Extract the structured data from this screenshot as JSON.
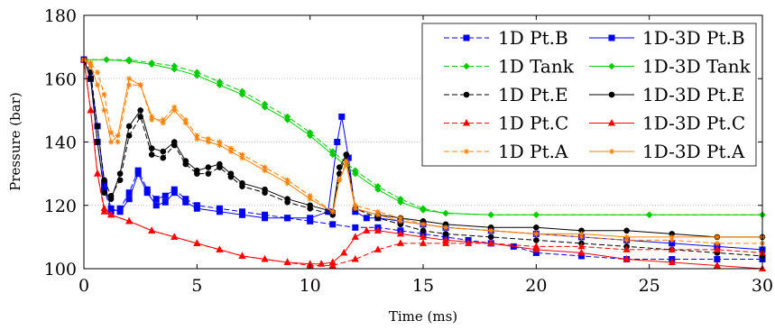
{
  "chart_data": {
    "type": "line",
    "title": "",
    "xlabel": "Time (ms)",
    "ylabel": "Pressure (bar)",
    "xlim": [
      0,
      30
    ],
    "ylim": [
      100,
      180
    ],
    "xticks": [
      0,
      5,
      10,
      15,
      20,
      25,
      30
    ],
    "yticks": [
      100,
      120,
      140,
      160,
      180
    ],
    "grid": "horizontal dotted",
    "legend_position": "top-right",
    "series": [
      {
        "name": "1D Pt.B",
        "color": "#0000ff",
        "dashed": true,
        "marker": "square",
        "x": [
          0,
          0.3,
          0.6,
          0.9,
          1.2,
          1.6,
          2,
          2.4,
          2.8,
          3.2,
          3.6,
          4,
          4.5,
          5,
          6,
          7,
          8,
          9,
          10,
          11,
          12,
          13,
          14,
          15,
          16,
          17,
          18,
          19,
          20,
          22,
          24,
          26,
          28,
          30
        ],
        "y": [
          166,
          160,
          140,
          125,
          118,
          119,
          124,
          131,
          125,
          122,
          123,
          125,
          122,
          120,
          119,
          118,
          117,
          116,
          115,
          114,
          113,
          113,
          112,
          111,
          110,
          109,
          108,
          107,
          105,
          104,
          103,
          103,
          103,
          103
        ]
      },
      {
        "name": "1D-3D Pt.B",
        "color": "#0000ff",
        "dashed": false,
        "marker": "square",
        "x": [
          0,
          0.3,
          0.6,
          0.9,
          1.2,
          1.6,
          2,
          2.4,
          2.8,
          3.2,
          3.6,
          4,
          4.5,
          5,
          6,
          7,
          8,
          9,
          10,
          10.8,
          11.2,
          11.4,
          11.7,
          12,
          12.5,
          13,
          14,
          15,
          16,
          18,
          20,
          22,
          24,
          26,
          28,
          30
        ],
        "y": [
          166,
          160,
          145,
          127,
          119,
          118,
          122,
          130,
          124,
          120,
          121,
          124,
          121,
          119,
          118,
          117,
          116,
          116,
          116,
          118,
          140,
          148,
          135,
          118,
          116,
          116,
          115,
          114,
          113,
          112,
          111,
          110,
          109,
          108,
          107,
          106
        ]
      },
      {
        "name": "1D Tank",
        "color": "#00cc00",
        "dashed": true,
        "marker": "diamond",
        "x": [
          0,
          1,
          2,
          3,
          4,
          5,
          6,
          7,
          8,
          9,
          10,
          11,
          12,
          13,
          14,
          15,
          16,
          18,
          20,
          25,
          30
        ],
        "y": [
          166,
          166,
          166,
          165,
          164,
          162,
          159,
          156,
          152,
          148,
          143,
          137,
          131,
          126,
          122,
          119,
          117.5,
          117,
          117,
          117,
          117
        ]
      },
      {
        "name": "1D-3D Tank",
        "color": "#00cc00",
        "dashed": false,
        "marker": "diamond",
        "x": [
          0,
          1,
          2,
          3,
          4,
          5,
          6,
          7,
          8,
          9,
          10,
          11,
          12,
          13,
          14,
          15,
          16,
          18,
          20,
          25,
          30
        ],
        "y": [
          166,
          166,
          165.5,
          164.5,
          163,
          161,
          158,
          155,
          151,
          147,
          142,
          136,
          130,
          125,
          121,
          118.5,
          117.5,
          117,
          117,
          117,
          117
        ]
      },
      {
        "name": "1D Pt.E",
        "color": "#000000",
        "dashed": true,
        "marker": "circle",
        "x": [
          0,
          0.3,
          0.6,
          0.9,
          1.2,
          1.6,
          2,
          2.5,
          3,
          3.5,
          4,
          4.5,
          5,
          5.5,
          6,
          6.5,
          7,
          8,
          9,
          10,
          11,
          11.3,
          11.6,
          12,
          13,
          14,
          15,
          16,
          18,
          20,
          22,
          24,
          26,
          28,
          30
        ],
        "y": [
          166,
          162,
          145,
          128,
          123,
          128,
          142,
          148,
          136,
          135,
          139,
          133,
          130,
          130,
          132,
          129,
          126,
          124,
          121,
          119,
          117,
          130,
          136,
          119,
          116,
          114,
          112,
          111,
          110,
          109,
          108,
          107,
          106,
          105,
          104
        ]
      },
      {
        "name": "1D-3D Pt.E",
        "color": "#000000",
        "dashed": false,
        "marker": "circle",
        "x": [
          0,
          0.3,
          0.6,
          0.9,
          1.2,
          1.6,
          2,
          2.5,
          3,
          3.5,
          4,
          4.5,
          5,
          5.5,
          6,
          6.5,
          7,
          8,
          9,
          10,
          11,
          11.3,
          11.6,
          12,
          13,
          14,
          15,
          16,
          18,
          20,
          22,
          24,
          26,
          28,
          30
        ],
        "y": [
          166,
          160,
          140,
          124,
          122,
          130,
          145,
          150,
          138,
          137,
          140,
          134,
          131,
          132,
          133,
          130,
          127,
          125,
          122,
          120,
          118,
          132,
          136,
          119,
          117,
          116,
          115,
          114,
          113,
          113,
          112,
          112,
          111,
          110,
          110
        ]
      },
      {
        "name": "1D Pt.C",
        "color": "#ff0000",
        "dashed": true,
        "marker": "triangle",
        "x": [
          0,
          0.3,
          0.6,
          0.9,
          1.2,
          2,
          3,
          4,
          5,
          6,
          7,
          8,
          9,
          10,
          11,
          12,
          13,
          14,
          15,
          16,
          17,
          18,
          20,
          22,
          24,
          26,
          28,
          30
        ],
        "y": [
          166,
          150,
          130,
          118,
          117,
          115,
          112,
          110,
          108,
          106,
          104,
          103,
          102,
          101,
          101,
          103,
          106,
          108,
          108,
          108,
          108,
          108,
          107,
          107,
          106,
          106,
          106,
          105
        ]
      },
      {
        "name": "1D-3D Pt.C",
        "color": "#ff0000",
        "dashed": false,
        "marker": "triangle",
        "x": [
          0,
          0.3,
          0.6,
          0.9,
          1.2,
          2,
          3,
          4,
          5,
          6,
          7,
          8,
          9,
          10,
          10.5,
          11,
          11.5,
          12,
          12.5,
          13,
          14,
          15,
          16,
          18,
          20,
          22,
          24,
          26,
          28,
          30
        ],
        "y": [
          166,
          150,
          130,
          119,
          117,
          115,
          112,
          110,
          108,
          106,
          104,
          103,
          102,
          101.5,
          101.5,
          102,
          105,
          110,
          112,
          112,
          111,
          110,
          109,
          108,
          106,
          105,
          103,
          102,
          101,
          100
        ]
      },
      {
        "name": "1D Pt.A",
        "color": "#ff8000",
        "dashed": true,
        "marker": "star",
        "x": [
          0,
          0.3,
          0.6,
          0.9,
          1.2,
          1.5,
          2,
          2.5,
          3,
          3.5,
          4,
          4.5,
          5,
          5.5,
          6,
          6.5,
          7,
          8,
          9,
          10,
          11,
          11.3,
          11.6,
          12,
          13,
          14,
          15,
          16,
          18,
          20,
          22,
          24,
          26,
          28,
          30
        ],
        "y": [
          166,
          165,
          162,
          155,
          143,
          140,
          158,
          158,
          147,
          147,
          151,
          147,
          142,
          141,
          140,
          138,
          136,
          132,
          128,
          123,
          118,
          128,
          134,
          120,
          118,
          116,
          114,
          113,
          112,
          111,
          110,
          109,
          109,
          108,
          108
        ]
      },
      {
        "name": "1D-3D Pt.A",
        "color": "#ff8000",
        "dashed": false,
        "marker": "star",
        "x": [
          0,
          0.3,
          0.6,
          0.9,
          1.2,
          1.5,
          2,
          2.5,
          3,
          3.5,
          4,
          4.5,
          5,
          5.5,
          6,
          6.5,
          7,
          8,
          9,
          10,
          11,
          11.3,
          11.6,
          12,
          13,
          14,
          15,
          16,
          18,
          20,
          22,
          24,
          26,
          28,
          30
        ],
        "y": [
          166,
          164,
          158,
          150,
          140,
          142,
          160,
          158,
          148,
          146,
          150,
          146,
          141,
          140,
          139,
          137,
          135,
          131,
          127,
          122,
          118,
          128,
          133,
          119,
          117,
          115,
          114,
          113,
          112,
          111,
          111,
          110,
          110,
          110,
          110
        ]
      }
    ]
  }
}
